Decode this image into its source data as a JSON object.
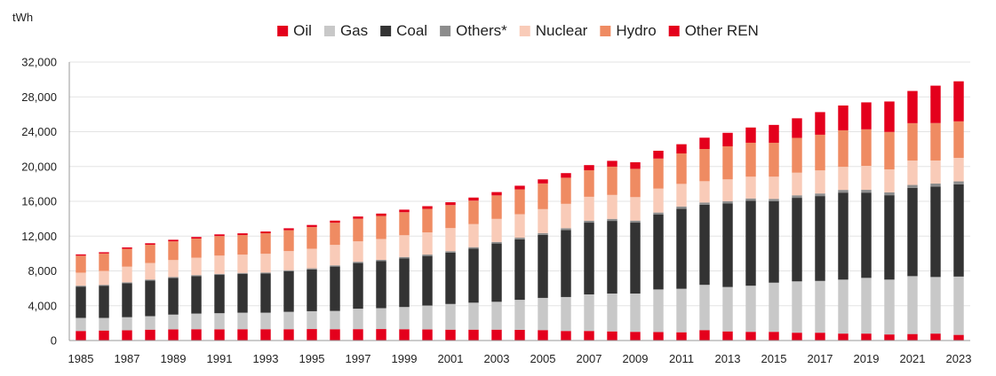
{
  "chart_data": {
    "type": "bar",
    "stacked": true,
    "unit_label": "tWh",
    "title": "",
    "xlabel": "",
    "ylabel": "tWh",
    "ylim": [
      0,
      32000
    ],
    "yticks": [
      "0",
      "4,000",
      "8,000",
      "12,000",
      "16,000",
      "20,000",
      "24,000",
      "28,000",
      "32,000"
    ],
    "ytick_values": [
      0,
      4000,
      8000,
      12000,
      16000,
      20000,
      24000,
      28000,
      32000
    ],
    "grid": true,
    "legend_position": "top",
    "categories": [
      "1985",
      "1986",
      "1987",
      "1988",
      "1989",
      "1990",
      "1991",
      "1992",
      "1993",
      "1994",
      "1995",
      "1996",
      "1997",
      "1998",
      "1999",
      "2000",
      "2001",
      "2002",
      "2003",
      "2004",
      "2005",
      "2006",
      "2007",
      "2008",
      "2009",
      "2010",
      "2011",
      "2012",
      "2013",
      "2014",
      "2015",
      "2016",
      "2017",
      "2018",
      "2019",
      "2020",
      "2021",
      "2022",
      "2023"
    ],
    "xtick_labels": [
      "1985",
      "1987",
      "1989",
      "1991",
      "1993",
      "1995",
      "1997",
      "1999",
      "2001",
      "2003",
      "2005",
      "2007",
      "2009",
      "2011",
      "2013",
      "2015",
      "2017",
      "2019",
      "2021",
      "2023"
    ],
    "series": [
      {
        "name": "Oil",
        "color": "#e4001c",
        "values": [
          1100,
          1150,
          1180,
          1250,
          1280,
          1300,
          1290,
          1300,
          1300,
          1300,
          1320,
          1300,
          1310,
          1320,
          1300,
          1270,
          1250,
          1250,
          1250,
          1230,
          1200,
          1100,
          1100,
          1050,
          1000,
          970,
          950,
          1200,
          1050,
          1000,
          1000,
          900,
          900,
          800,
          800,
          700,
          750,
          800,
          650
        ]
      },
      {
        "name": "Gas",
        "color": "#c8c8c8",
        "values": [
          1500,
          1450,
          1500,
          1550,
          1700,
          1800,
          1850,
          1900,
          1900,
          2000,
          2050,
          2100,
          2350,
          2400,
          2550,
          2750,
          2950,
          3100,
          3200,
          3450,
          3700,
          3900,
          4200,
          4350,
          4400,
          4900,
          5000,
          5200,
          5100,
          5300,
          5650,
          5900,
          5950,
          6200,
          6400,
          6300,
          6650,
          6500,
          6700
        ]
      },
      {
        "name": "Coal",
        "color": "#333333",
        "values": [
          3600,
          3700,
          3900,
          4100,
          4200,
          4300,
          4400,
          4450,
          4500,
          4650,
          4800,
          5100,
          5250,
          5400,
          5600,
          5700,
          5900,
          6200,
          6700,
          6950,
          7250,
          7700,
          8250,
          8350,
          8150,
          8600,
          9200,
          9200,
          9600,
          9750,
          9350,
          9600,
          9750,
          10000,
          9800,
          9700,
          10150,
          10400,
          10600
        ]
      },
      {
        "name": "Others*",
        "color": "#8c8c8c",
        "values": [
          100,
          100,
          110,
          110,
          120,
          120,
          120,
          120,
          120,
          130,
          130,
          140,
          140,
          150,
          150,
          160,
          170,
          180,
          180,
          190,
          200,
          210,
          220,
          230,
          230,
          240,
          250,
          260,
          270,
          280,
          280,
          290,
          300,
          310,
          320,
          320,
          330,
          340,
          340
        ]
      },
      {
        "name": "Nuclear",
        "color": "#f9cbb8",
        "values": [
          1500,
          1600,
          1800,
          1900,
          1950,
          2000,
          2100,
          2100,
          2150,
          2200,
          2250,
          2350,
          2350,
          2400,
          2500,
          2550,
          2650,
          2650,
          2650,
          2700,
          2750,
          2800,
          2750,
          2750,
          2700,
          2750,
          2600,
          2450,
          2500,
          2500,
          2550,
          2600,
          2650,
          2650,
          2750,
          2650,
          2800,
          2650,
          2700
        ]
      },
      {
        "name": "Hydro",
        "color": "#ef8b62",
        "values": [
          1950,
          2000,
          2050,
          2100,
          2150,
          2200,
          2250,
          2250,
          2350,
          2400,
          2500,
          2550,
          2600,
          2650,
          2650,
          2700,
          2650,
          2700,
          2700,
          2850,
          2950,
          3000,
          3050,
          3250,
          3250,
          3450,
          3500,
          3700,
          3800,
          3900,
          3900,
          4000,
          4100,
          4200,
          4200,
          4300,
          4300,
          4300,
          4200
        ]
      },
      {
        "name": "Other REN",
        "color": "#e4001c",
        "values": [
          150,
          150,
          160,
          170,
          180,
          180,
          190,
          200,
          210,
          220,
          230,
          240,
          250,
          270,
          290,
          310,
          320,
          350,
          380,
          420,
          470,
          530,
          590,
          670,
          760,
          900,
          1060,
          1300,
          1550,
          1750,
          2050,
          2250,
          2600,
          2850,
          3100,
          3500,
          3700,
          4300,
          4600
        ]
      }
    ]
  }
}
